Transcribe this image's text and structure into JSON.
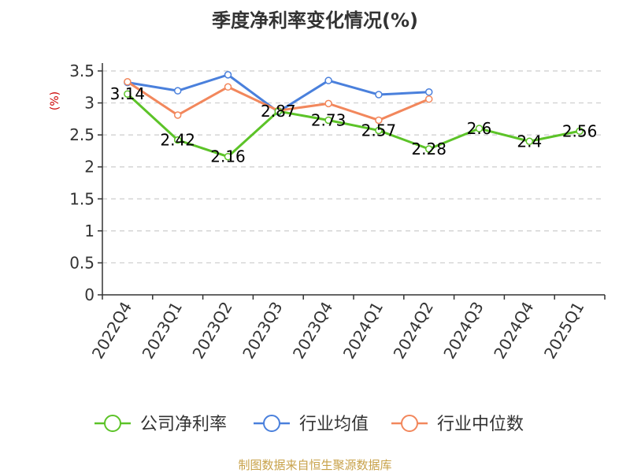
{
  "chart_data": {
    "type": "line",
    "title": "季度净利率变化情况(%)",
    "ylabel": "(%)",
    "categories": [
      "2022Q4",
      "2023Q1",
      "2023Q2",
      "2023Q3",
      "2023Q4",
      "2024Q1",
      "2024Q2",
      "2024Q3",
      "2024Q4",
      "2025Q1"
    ],
    "ylim": [
      0,
      3.5
    ],
    "yticks": [
      0,
      0.5,
      1,
      1.5,
      2,
      2.5,
      3,
      3.5
    ],
    "ytick_labels": [
      "0",
      "0.5",
      "1",
      "1.5",
      "2",
      "2.5",
      "3",
      "3.5"
    ],
    "grid": true,
    "legend_position": "bottom",
    "series": [
      {
        "name": "公司净利率",
        "color": "#5cc328",
        "values": [
          3.14,
          2.42,
          2.16,
          2.87,
          2.73,
          2.57,
          2.28,
          2.6,
          2.4,
          2.56
        ],
        "data_labels": [
          "3.14",
          "2.42",
          "2.16",
          "2.87",
          "2.73",
          "2.57",
          "2.28",
          "2.6",
          "2.4",
          "2.56"
        ]
      },
      {
        "name": "行业均值",
        "color": "#4a80dc",
        "values": [
          3.32,
          3.19,
          3.44,
          2.86,
          3.35,
          3.13,
          3.17,
          null,
          null,
          null
        ]
      },
      {
        "name": "行业中位数",
        "color": "#f2875c",
        "values": [
          3.33,
          2.81,
          3.25,
          2.88,
          2.99,
          2.73,
          3.06,
          null,
          null,
          null
        ]
      }
    ]
  },
  "source": "制图数据来自恒生聚源数据库"
}
